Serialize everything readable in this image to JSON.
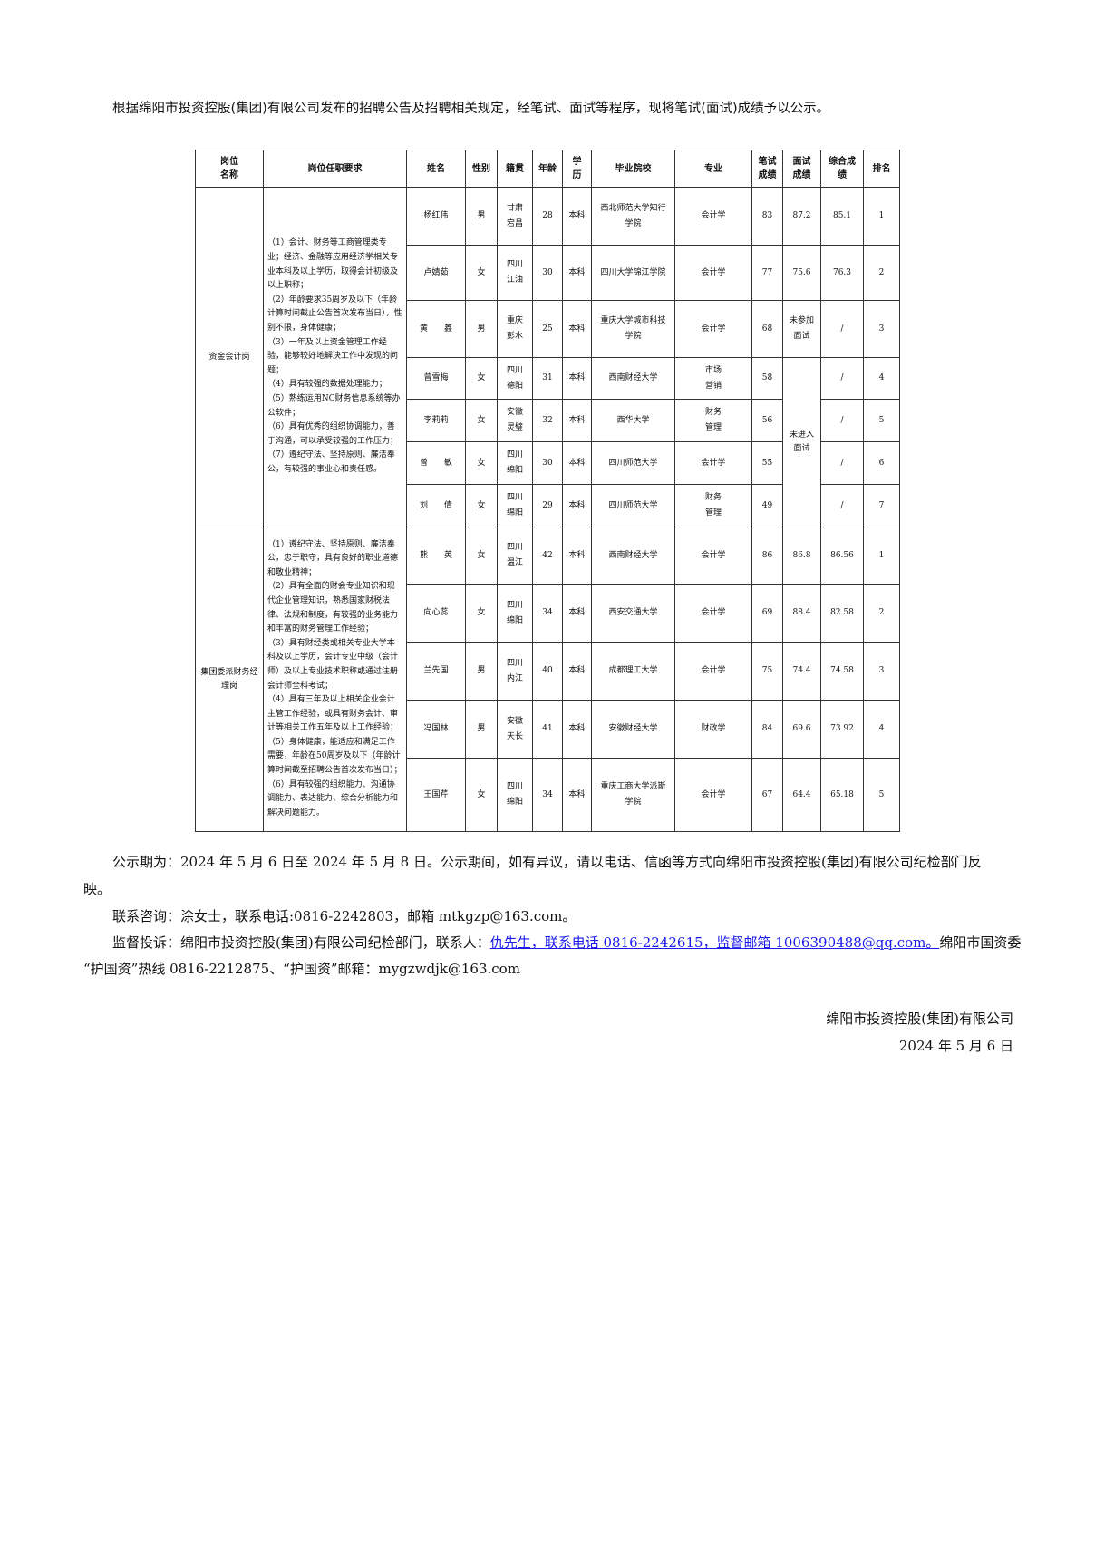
{
  "intro": "根据绵阳市投资控股(集团)有限公司发布的招聘公告及招聘相关规定，经笔试、面试等程序，现将笔试(面试)成绩予以公示。",
  "table": {
    "headers": [
      "岗位\n名称",
      "岗位任职要求",
      "姓名",
      "性别",
      "籍贯",
      "年龄",
      "学\n历",
      "毕业院校",
      "专业",
      "笔试\n成绩",
      "面试\n成绩",
      "综合成\n绩",
      "排名"
    ],
    "groups": [
      {
        "position": "资金会计岗",
        "requirements": [
          "（1）会计、财务等工商管理类专业；经济、金融等应用经济学相关专业本科及以上学历，取得会计初级及以上职称；",
          "（2）年龄要求35周岁及以下（年龄计算时间截止公告首次发布当日），性别不限，身体健康；",
          "（3）一年及以上资金管理工作经验，能够较好地解决工作中发现的问题；",
          "（4）具有较强的数据处理能力；",
          "（5）熟练运用NC财务信息系统等办公软件；",
          "（6）具有优秀的组织协调能力，善于沟通，可以承受较强的工作压力；",
          "（7）遵纪守法、坚持原则、廉洁奉公，有较强的事业心和责任感。"
        ],
        "merged_interview": "未进入\n面试",
        "rows": [
          {
            "name": "杨红伟",
            "gender": "男",
            "origin": "甘肃\n宕昌",
            "age": "28",
            "edu": "本科",
            "school": "西北师范大学知行\n学院",
            "major": "会计学",
            "written": "83",
            "interview": "87.2",
            "total": "85.1",
            "rank": "1"
          },
          {
            "name": "卢婧茹",
            "gender": "女",
            "origin": "四川\n江油",
            "age": "30",
            "edu": "本科",
            "school": "四川大学锦江学院",
            "major": "会计学",
            "written": "77",
            "interview": "75.6",
            "total": "76.3",
            "rank": "2"
          },
          {
            "name": "黄　　鑫",
            "gender": "男",
            "origin": "重庆\n彭水",
            "age": "25",
            "edu": "本科",
            "school": "重庆大学城市科技\n学院",
            "major": "会计学",
            "written": "68",
            "interview": "未参加\n面试",
            "total": "/",
            "rank": "3"
          },
          {
            "name": "曾雪梅",
            "gender": "女",
            "origin": "四川\n德阳",
            "age": "31",
            "edu": "本科",
            "school": "西南财经大学",
            "major": "市场\n营销",
            "written": "58",
            "total": "/",
            "rank": "4"
          },
          {
            "name": "李莉莉",
            "gender": "女",
            "origin": "安徽\n灵璧",
            "age": "32",
            "edu": "本科",
            "school": "西华大学",
            "major": "财务\n管理",
            "written": "56",
            "total": "/",
            "rank": "5"
          },
          {
            "name": "曾　　敏",
            "gender": "女",
            "origin": "四川\n绵阳",
            "age": "30",
            "edu": "本科",
            "school": "四川师范大学",
            "major": "会计学",
            "written": "55",
            "total": "/",
            "rank": "6"
          },
          {
            "name": "刘　　倩",
            "gender": "女",
            "origin": "四川\n绵阳",
            "age": "29",
            "edu": "本科",
            "school": "四川师范大学",
            "major": "财务\n管理",
            "written": "49",
            "total": "/",
            "rank": "7"
          }
        ]
      },
      {
        "position": "集团委派财务经理岗",
        "requirements": [
          "（1）遵纪守法、坚持原则、廉洁奉公，忠于职守，具有良好的职业道德和敬业精神；",
          "（2）具有全面的财会专业知识和现代企业管理知识，熟悉国家财税法律、法规和制度，有较强的业务能力和丰富的财务管理工作经验；",
          "（3）具有财经类或相关专业大学本科及以上学历，会计专业中级（会计师）及以上专业技术职称或通过注册会计师全科考试；",
          "（4）具有三年及以上相关企业会计主管工作经验，或具有财务会计、审计等相关工作五年及以上工作经验；",
          "（5）身体健康，能适应和满足工作需要，年龄在50周岁及以下（年龄计算时间截至招聘公告首次发布当日）；",
          "（6）具有较强的组织能力、沟通协调能力、表达能力、综合分析能力和解决问题能力。"
        ],
        "rows": [
          {
            "name": "熊　　英",
            "gender": "女",
            "origin": "四川\n温江",
            "age": "42",
            "edu": "本科",
            "school": "西南财经大学",
            "major": "会计学",
            "written": "86",
            "interview": "86.8",
            "total": "86.56",
            "rank": "1"
          },
          {
            "name": "向心蕊",
            "gender": "女",
            "origin": "四川\n绵阳",
            "age": "34",
            "edu": "本科",
            "school": "西安交通大学",
            "major": "会计学",
            "written": "69",
            "interview": "88.4",
            "total": "82.58",
            "rank": "2"
          },
          {
            "name": "兰先国",
            "gender": "男",
            "origin": "四川\n内江",
            "age": "40",
            "edu": "本科",
            "school": "成都理工大学",
            "major": "会计学",
            "written": "75",
            "interview": "74.4",
            "total": "74.58",
            "rank": "3"
          },
          {
            "name": "冯国林",
            "gender": "男",
            "origin": "安徽\n天长",
            "age": "41",
            "edu": "本科",
            "school": "安徽财经大学",
            "major": "财政学",
            "written": "84",
            "interview": "69.6",
            "total": "73.92",
            "rank": "4"
          },
          {
            "name": "王国芹",
            "gender": "女",
            "origin": "四川\n绵阳",
            "age": "34",
            "edu": "本科",
            "school": "重庆工商大学派斯\n学院",
            "major": "会计学",
            "written": "67",
            "interview": "64.4",
            "total": "65.18",
            "rank": "5"
          }
        ]
      }
    ]
  },
  "footer": {
    "period_line1": "公示期为：2024 年 5 月 6 日至 2024 年 5 月 8 日。公示期间，如有异议，请以电话、信函等方式向绵阳市投资控股(集团)有限公司纪检部门反",
    "period_line2": "映。",
    "contact": "联系咨询：涂女士，联系电话:0816-2242803，邮箱 mtkgzp@163.com。",
    "supervise_prefix": "监督投诉：绵阳市投资控股(集团)有限公司纪检部门，联系人：",
    "supervise_link": "仇先生，联系电话 0816-2242615，监督邮箱 1006390488@qq.com。",
    "supervise_suffix": "绵阳市国资委",
    "supervise_line2": "“护国资”热线 0816-2212875、“护国资”邮箱：mygzwdjk@163.com",
    "signature": "绵阳市投资控股(集团)有限公司",
    "date": "2024 年 5 月 6 日"
  },
  "colors": {
    "link": "#1a1aee",
    "border": "#333333"
  }
}
